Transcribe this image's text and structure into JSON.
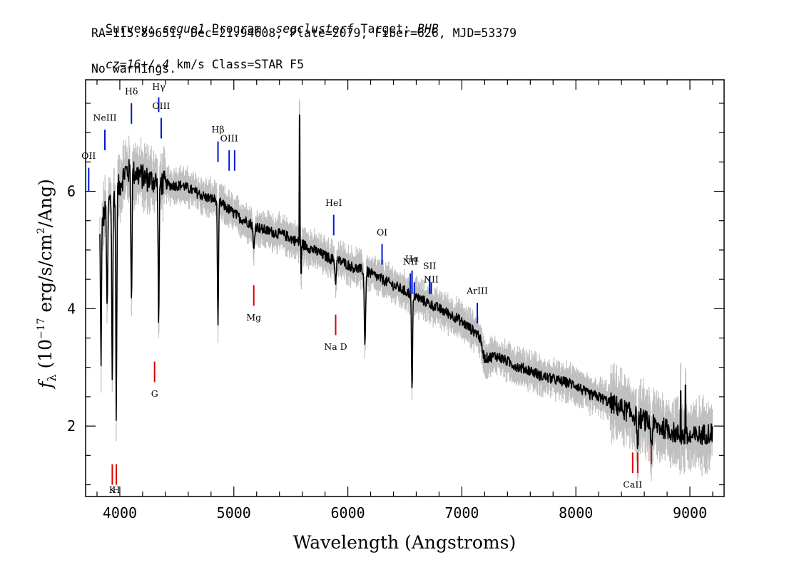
{
  "header": {
    "line1": {
      "survey_label": "Survey: ",
      "survey": "segue1",
      "program_label": " Program: ",
      "program": "segclusterf",
      "target_label": " Target: ",
      "target": "BHB"
    },
    "line2": "RA=115.89651, Dec=21.94608, Plate=2079, Fiber=626, MJD=53379",
    "line3": {
      "cz": "cz=16+/-4",
      "rest": " km/s Class=STAR F5"
    },
    "line4": "No warnings."
  },
  "colors": {
    "spectrum": "#000000",
    "error_band": "#c0c0c0",
    "emission": "#0018d0",
    "absorption": "#e00000"
  },
  "chart_data": {
    "type": "line",
    "xlabel": "Wavelength (Angstroms)",
    "ylabel": "f_λ (10^-17 erg/s/cm²/Ang)",
    "ylabel_parts": {
      "f": "f",
      "sub": "λ",
      "pre": " (10",
      "exp": "−17",
      "mid": " erg/s/cm",
      "exp2": "2",
      "post": "/Ang)"
    },
    "xlim": [
      3700,
      9300
    ],
    "ylim": [
      0.8,
      7.9
    ],
    "x_ticks": [
      4000,
      5000,
      6000,
      7000,
      8000,
      9000
    ],
    "x_tick_labels": [
      "4000",
      "5000",
      "6000",
      "7000",
      "8000",
      "9000"
    ],
    "y_ticks": [
      2,
      4,
      6
    ],
    "y_tick_labels": [
      "2",
      "4",
      "6"
    ],
    "grid": false,
    "legend": "none",
    "series": [
      {
        "x": [
          3825,
          3900,
          4000,
          4050,
          4150,
          4250,
          4350,
          4450,
          4550,
          4650,
          4750,
          4850,
          4950,
          5050,
          5150,
          5250,
          5350,
          5450,
          5550,
          5650,
          5750,
          5850,
          5950,
          6050,
          6150,
          6250,
          6350,
          6450,
          6550,
          6650,
          6750,
          6850,
          6950,
          7050,
          7150,
          7200,
          7300,
          7400,
          7500,
          7600,
          7700,
          7800,
          7900,
          8000,
          8100,
          8200,
          8300,
          8400,
          8500,
          8600,
          8700,
          8800,
          8900,
          9000,
          9100,
          9200
        ],
        "y": [
          5.4,
          5.8,
          6.1,
          6.35,
          6.3,
          6.2,
          6.15,
          6.1,
          6.1,
          6.0,
          5.9,
          5.85,
          5.7,
          5.55,
          5.45,
          5.35,
          5.3,
          5.25,
          5.15,
          5.05,
          4.95,
          4.85,
          4.8,
          4.7,
          4.65,
          4.55,
          4.45,
          4.35,
          4.25,
          4.15,
          4.05,
          3.95,
          3.85,
          3.7,
          3.55,
          3.15,
          3.2,
          3.1,
          3.0,
          2.95,
          2.85,
          2.8,
          2.75,
          2.7,
          2.55,
          2.5,
          2.4,
          2.3,
          2.2,
          2.1,
          2.0,
          1.95,
          1.85,
          1.8,
          1.85,
          1.9
        ]
      }
    ],
    "spectral_lines": [
      {
        "label": "OII",
        "x": 3727,
        "y0": 6.0,
        "y1": 6.4,
        "type": "emission",
        "text_y": 6.55
      },
      {
        "label": "NeIII",
        "x": 3869,
        "y0": 6.7,
        "y1": 7.05,
        "type": "emission",
        "text_y": 7.2
      },
      {
        "label": "Hδ",
        "x": 4102,
        "y0": 7.15,
        "y1": 7.5,
        "type": "emission",
        "text_y": 7.65
      },
      {
        "label": "Hγ",
        "x": 4341,
        "y0": 7.35,
        "y1": 7.6,
        "type": "emission",
        "text_y": 7.73
      },
      {
        "label": "OIII",
        "x": 4363,
        "y0": 6.9,
        "y1": 7.25,
        "type": "emission",
        "text_y": 7.4
      },
      {
        "label": "Hβ",
        "x": 4861,
        "y0": 6.5,
        "y1": 6.85,
        "type": "emission",
        "text_y": 7.0
      },
      {
        "label": "OIII",
        "x": 4959,
        "y0": 6.35,
        "y1": 6.7,
        "type": "emission",
        "text_y": 6.85
      },
      {
        "label": "",
        "x": 5007,
        "y0": 6.35,
        "y1": 6.7,
        "type": "emission"
      },
      {
        "label": "HeI",
        "x": 5876,
        "y0": 5.25,
        "y1": 5.6,
        "type": "emission",
        "text_y": 5.75
      },
      {
        "label": "OI",
        "x": 6300,
        "y0": 4.75,
        "y1": 5.1,
        "type": "emission",
        "text_y": 5.25
      },
      {
        "label": "NII",
        "x": 6548,
        "y0": 4.25,
        "y1": 4.6,
        "type": "emission",
        "text_y": 4.75
      },
      {
        "label": "Hα",
        "x": 6563,
        "y0": 4.25,
        "y1": 4.65,
        "type": "emission",
        "text_y": 4.8
      },
      {
        "label": "",
        "x": 6583,
        "y0": 4.25,
        "y1": 4.45,
        "type": "emission"
      },
      {
        "label": "SII",
        "x": 6717,
        "y0": 4.25,
        "y1": 4.55,
        "type": "emission",
        "text_y": 4.68
      },
      {
        "label": "NII",
        "x": 6731,
        "y0": 4.25,
        "y1": 4.45,
        "type": "emission",
        "text_y": 4.45
      },
      {
        "label": "ArIII",
        "x": 7135,
        "y0": 3.75,
        "y1": 4.1,
        "type": "emission",
        "text_y": 4.25
      },
      {
        "label": "K",
        "x": 3934,
        "y0": 1.0,
        "y1": 1.35,
        "type": "absorption",
        "text_y": 0.86
      },
      {
        "label": "H",
        "x": 3969,
        "y0": 1.0,
        "y1": 1.35,
        "type": "absorption",
        "text_y": 0.86
      },
      {
        "label": "G",
        "x": 4305,
        "y0": 2.75,
        "y1": 3.1,
        "type": "absorption",
        "text_y": 2.5
      },
      {
        "label": "Mg",
        "x": 5175,
        "y0": 4.05,
        "y1": 4.4,
        "type": "absorption",
        "text_y": 3.8
      },
      {
        "label": "Na D",
        "x": 5893,
        "y0": 3.55,
        "y1": 3.9,
        "type": "absorption",
        "text_y": 3.3
      },
      {
        "label": "CaII",
        "x": 8498,
        "y0": 1.2,
        "y1": 1.55,
        "type": "absorption",
        "text_y": 0.95
      },
      {
        "label": "",
        "x": 8542,
        "y0": 1.2,
        "y1": 1.55,
        "type": "absorption"
      },
      {
        "label": "",
        "x": 8662,
        "y0": 1.35,
        "y1": 1.7,
        "type": "absorption"
      }
    ],
    "absorption_features": [
      {
        "x": 3835,
        "depth": 2.3
      },
      {
        "x": 3889,
        "depth": 1.9
      },
      {
        "x": 3934,
        "depth": 3.2
      },
      {
        "x": 3969,
        "depth": 3.8
      },
      {
        "x": 4102,
        "depth": 2.2
      },
      {
        "x": 4341,
        "depth": 2.4
      },
      {
        "x": 4861,
        "depth": 2.2
      },
      {
        "x": 5175,
        "depth": 0.45
      },
      {
        "x": 5893,
        "depth": 0.35
      },
      {
        "x": 6150,
        "depth": 1.2
      },
      {
        "x": 6563,
        "depth": 1.7
      },
      {
        "x": 8542,
        "depth": 0.45
      },
      {
        "x": 8662,
        "depth": 0.4
      }
    ],
    "spikes": [
      {
        "x": 5577,
        "y": 7.3
      },
      {
        "x": 5590,
        "y": 4.6
      },
      {
        "x": 8920,
        "y": 2.6
      },
      {
        "x": 8960,
        "y": 2.7
      }
    ]
  }
}
